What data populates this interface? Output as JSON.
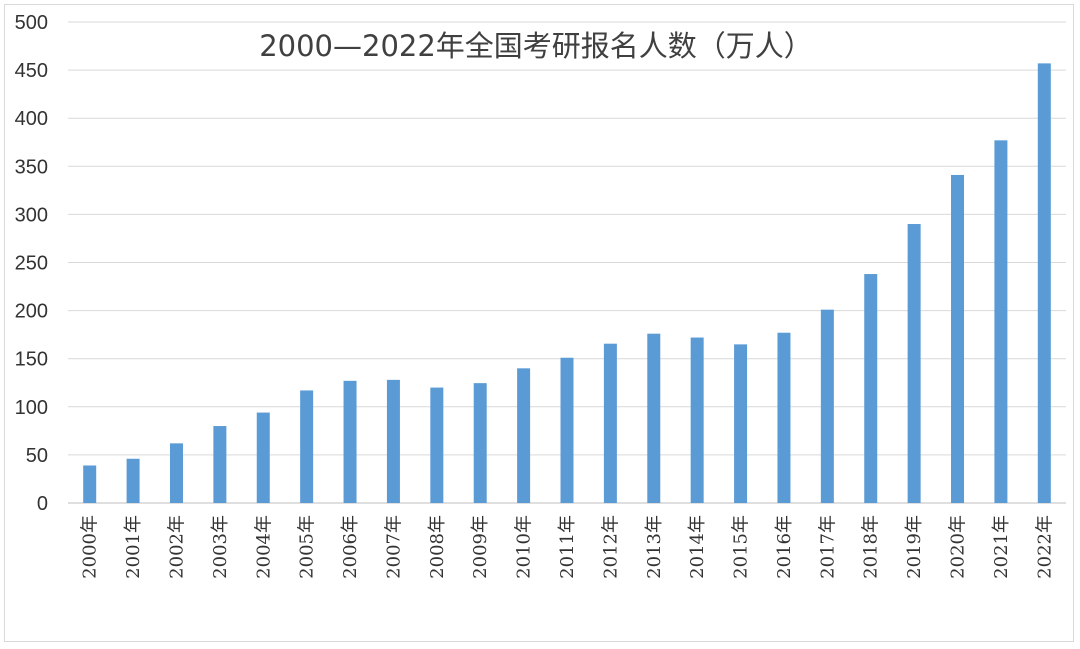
{
  "chart_data": {
    "type": "bar",
    "title": "2000—2022年全国考研报名人数（万人）",
    "xlabel": "",
    "ylabel": "",
    "ylim": [
      0,
      500
    ],
    "yticks": [
      0,
      50,
      100,
      150,
      200,
      250,
      300,
      350,
      400,
      450,
      500
    ],
    "grid": true,
    "bar_color": "#5b9bd5",
    "categories": [
      "2000年",
      "2001年",
      "2002年",
      "2003年",
      "2004年",
      "2005年",
      "2006年",
      "2007年",
      "2008年",
      "2009年",
      "2010年",
      "2011年",
      "2012年",
      "2013年",
      "2014年",
      "2015年",
      "2016年",
      "2017年",
      "2018年",
      "2019年",
      "2020年",
      "2021年",
      "2022年"
    ],
    "values": [
      39,
      46,
      62,
      80,
      94,
      117,
      127,
      128,
      120,
      124.6,
      140,
      151,
      165.6,
      176,
      172,
      164.9,
      177,
      201,
      238,
      290,
      341,
      377,
      457
    ]
  }
}
